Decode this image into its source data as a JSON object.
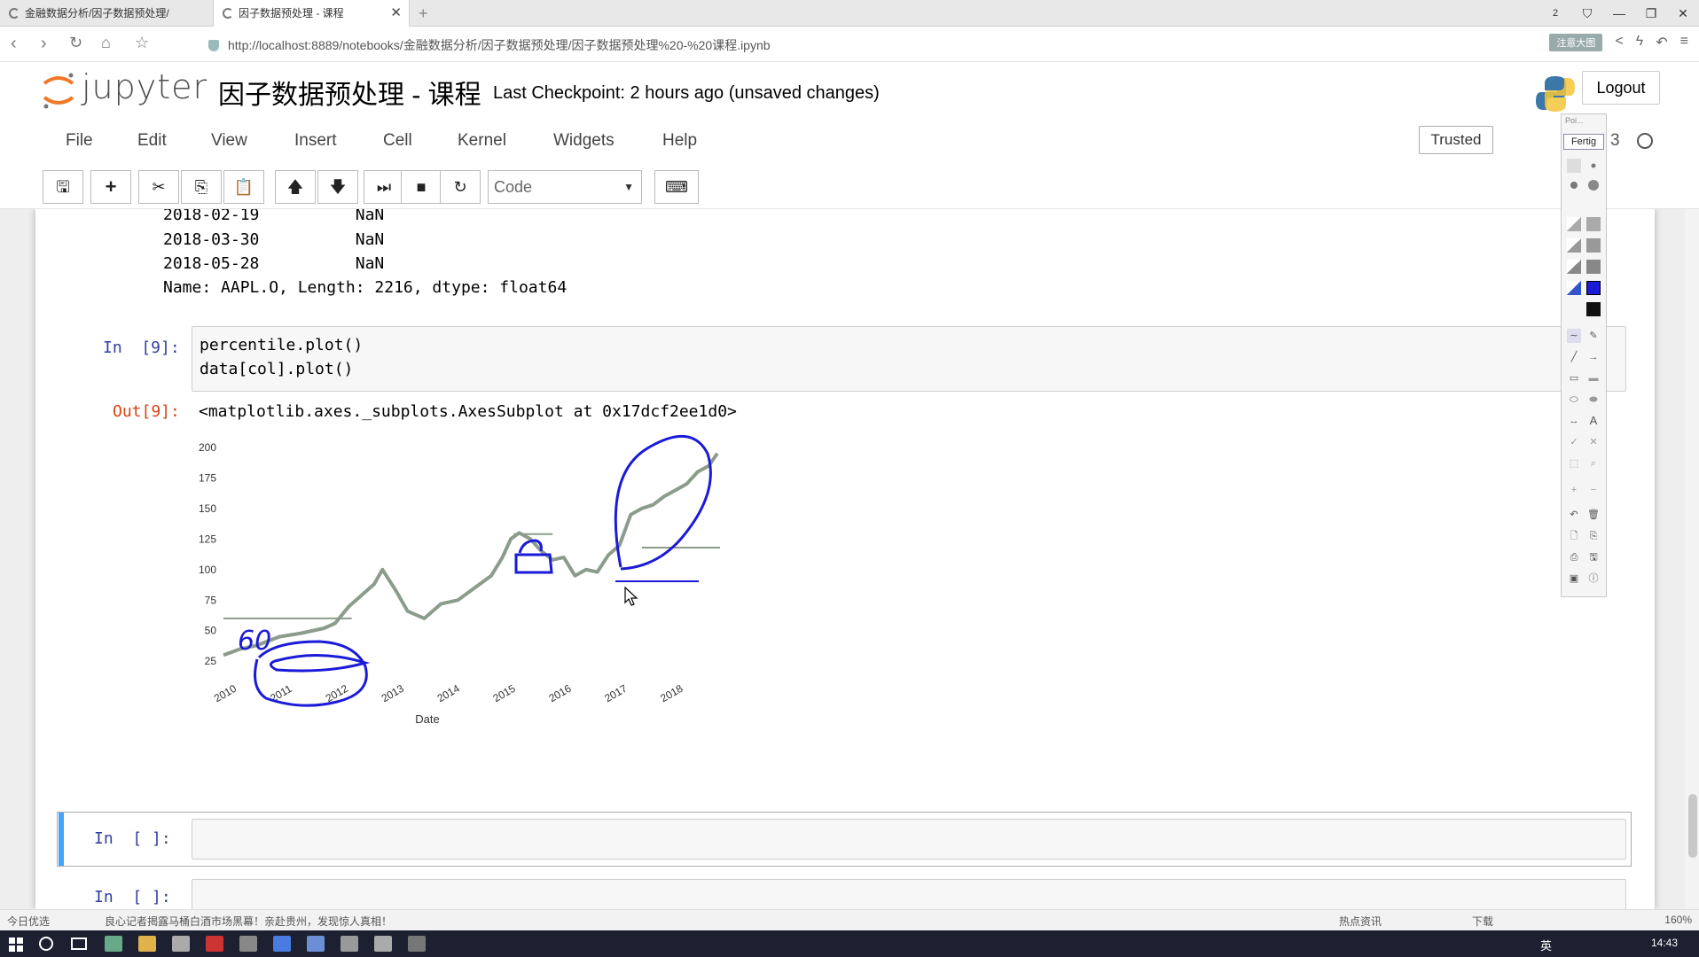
{
  "browser": {
    "tabs": [
      {
        "label": "金融数据分析/因子数据预处理/"
      },
      {
        "label": "因子数据预处理 - 课程"
      }
    ],
    "url": "http://localhost:8889/notebooks/金融数据分析/因子数据预处理/因子数据预处理%20-%20课程.ipynb",
    "tab_count": "2",
    "addon_badge": "注意大图"
  },
  "jupyter": {
    "logo_text": "jupyter",
    "notebook_title": "因子数据预处理 - 课程",
    "checkpoint": "Last Checkpoint: 2 hours ago (unsaved changes)",
    "logout_label": "Logout",
    "menu": [
      "File",
      "Edit",
      "View",
      "Insert",
      "Cell",
      "Kernel",
      "Widgets",
      "Help"
    ],
    "trusted_label": "Trusted",
    "kernel_label": "3",
    "cell_type": "Code"
  },
  "output_prev": [
    {
      "date": "2018-02-19",
      "value": "NaN"
    },
    {
      "date": "2018-03-30",
      "value": "NaN"
    },
    {
      "date": "2018-05-28",
      "value": "NaN"
    }
  ],
  "output_prev_footer": "Name: AAPL.O, Length: 2216, dtype: float64",
  "cell9": {
    "in_prompt": "In  [9]:",
    "code": [
      "percentile.plot()",
      "data[col].plot()"
    ],
    "out_prompt": "Out[9]:",
    "out_text": "<matplotlib.axes._subplots.AxesSubplot at 0x17dcf2ee1d0>"
  },
  "chart_data": {
    "type": "line",
    "title": "",
    "xlabel": "Date",
    "ylabel": "",
    "x_ticks": [
      "2010",
      "2011",
      "2012",
      "2013",
      "2014",
      "2015",
      "2016",
      "2017",
      "2018"
    ],
    "y_ticks": [
      25,
      50,
      75,
      100,
      125,
      150,
      175,
      200
    ],
    "ylim": [
      15,
      205
    ],
    "xlim": [
      2010.0,
      2018.9
    ],
    "series": [
      {
        "color": "#8c9c8c",
        "x": [
          2010.0,
          2010.3,
          2010.6,
          2011.0,
          2011.4,
          2011.8,
          2012.0,
          2012.25,
          2012.5,
          2012.7,
          2012.85,
          2013.1,
          2013.3,
          2013.6,
          2013.9,
          2014.2,
          2014.5,
          2014.8,
          2015.0,
          2015.15,
          2015.3,
          2015.5,
          2015.7,
          2015.9,
          2016.1,
          2016.3,
          2016.5,
          2016.7,
          2016.9,
          2017.1,
          2017.3,
          2017.5,
          2017.7,
          2017.9,
          2018.1,
          2018.3,
          2018.5,
          2018.7,
          2018.85
        ],
        "y": [
          30,
          35,
          38,
          45,
          48,
          52,
          56,
          70,
          80,
          88,
          100,
          82,
          66,
          60,
          72,
          75,
          85,
          95,
          110,
          125,
          130,
          125,
          115,
          108,
          110,
          95,
          100,
          98,
          112,
          120,
          145,
          150,
          153,
          160,
          165,
          170,
          180,
          185,
          195
        ]
      },
      {
        "color": "#8c9c8c",
        "x": [
          2010.0,
          2012.3
        ],
        "y": [
          60,
          60
        ]
      },
      {
        "color": "#8c9c8c",
        "x": [
          2015.2,
          2015.9
        ],
        "y": [
          129,
          129
        ]
      },
      {
        "color": "#8c9c8c",
        "x": [
          2017.5,
          2018.9
        ],
        "y": [
          118,
          118
        ]
      }
    ],
    "annotations": [
      {
        "text": "60"
      }
    ]
  },
  "cells_empty": [
    {
      "in_prompt": "In  [ ]:"
    },
    {
      "in_prompt": "In  [ ]:"
    }
  ],
  "palette": {
    "header": "Poi...",
    "active_label": "Fertig"
  },
  "statusbar": {
    "left": "今日优选",
    "news": "良心记者揭露马桶白酒市场黑幕！亲赴贵州，发现惊人真相！",
    "right_items": [
      "热点资讯",
      "下载"
    ],
    "zoom": "160%"
  },
  "taskbar": {
    "clock": "14:43",
    "ime": "英"
  }
}
